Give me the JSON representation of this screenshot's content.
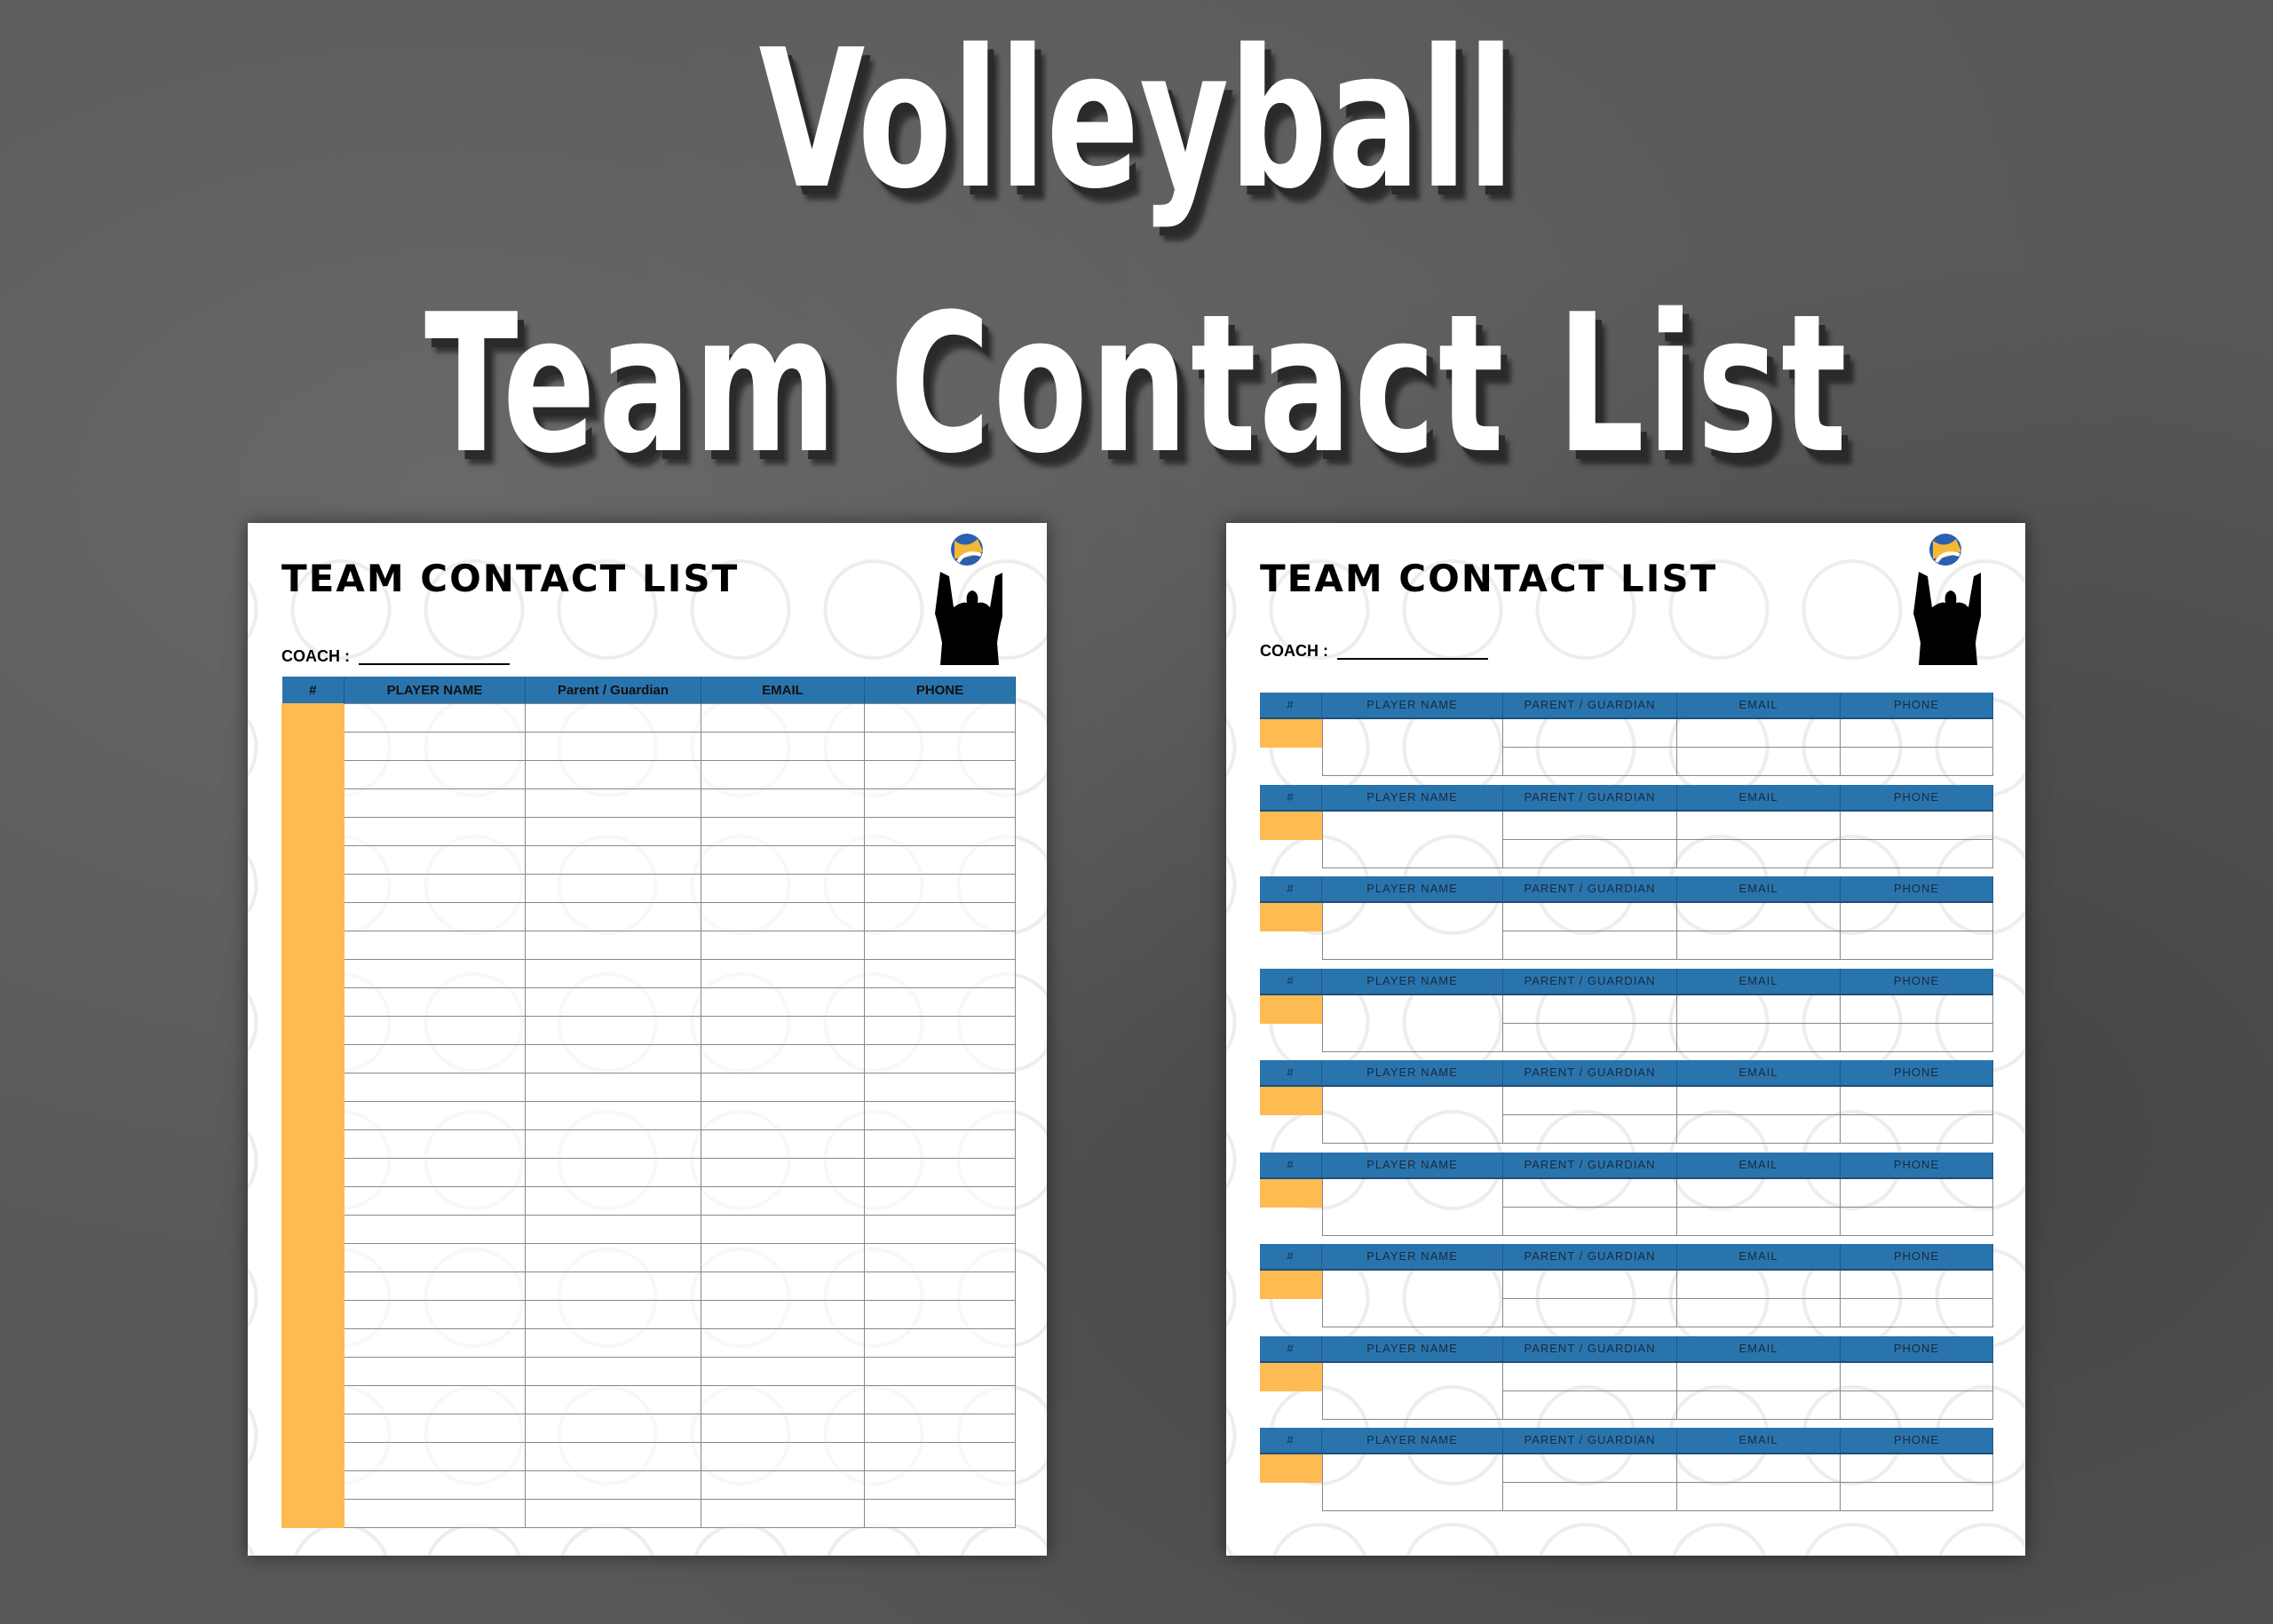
{
  "hero": {
    "line1": "Volleyball",
    "line2": "Team Contact List"
  },
  "left_page": {
    "title": "TEAM CONTACT LIST",
    "coach_label": "COACH :",
    "columns": [
      "#",
      "PLAYER NAME",
      "Parent / Guardian",
      "EMAIL",
      "PHONE"
    ]
  },
  "right_page": {
    "title": "TEAM CONTACT LIST",
    "coach_label": "COACH :",
    "columns": [
      "#",
      "PLAYER NAME",
      "PARENT / GUARDIAN",
      "EMAIL",
      "PHONE"
    ]
  },
  "colors": {
    "header_blue": "#2a74ae",
    "number_orange": "#fdbb52",
    "background": "#585858"
  },
  "icons": [
    "volleyball-player-silhouette-icon",
    "volleyball-icon",
    "volleyball-watermark-icon"
  ]
}
